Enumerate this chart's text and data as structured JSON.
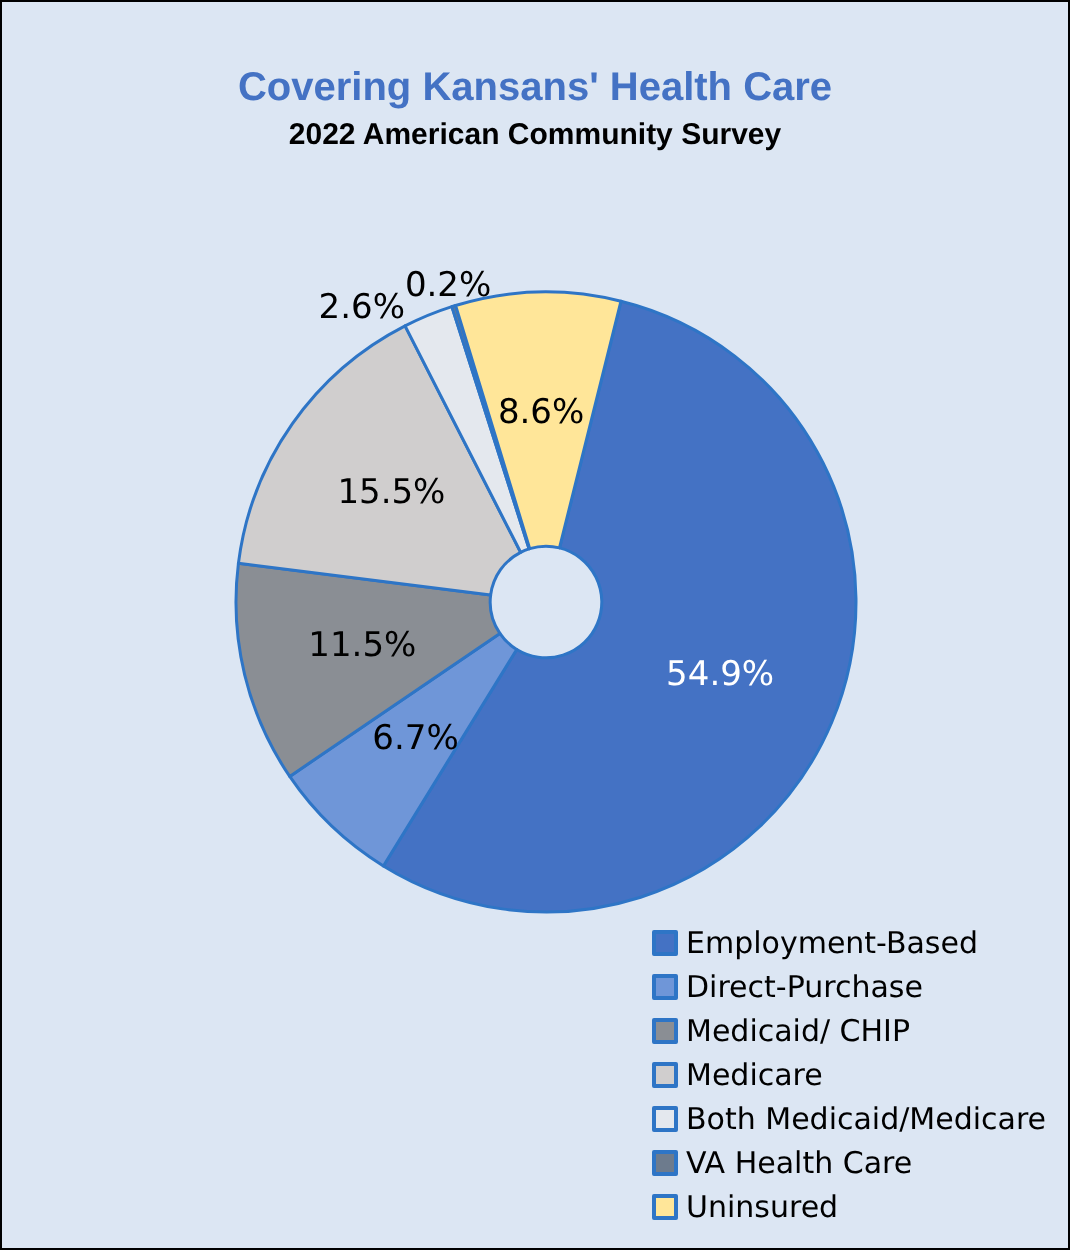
{
  "chart_data": {
    "type": "donut",
    "title": "Covering Kansans' Health Care",
    "subtitle": "2022 American Community Survey",
    "categories": [
      "Employment-Based",
      "Direct-Purchase",
      "Medicaid/ CHIP",
      "Medicare",
      "Both Medicaid/Medicare",
      "VA Health Care",
      "Uninsured"
    ],
    "values": [
      54.9,
      6.7,
      11.5,
      15.5,
      2.6,
      0.2,
      8.6
    ],
    "colors": [
      "#4472c4",
      "#6f96d8",
      "#8a8e94",
      "#d0cece",
      "#e4e8ee",
      "#6d7b8d",
      "#ffe699"
    ],
    "value_labels": [
      "54.9%",
      "6.7%",
      "11.5%",
      "15.5%",
      "2.6%",
      "0.2%",
      "8.6%"
    ],
    "legend": "bottom right"
  }
}
